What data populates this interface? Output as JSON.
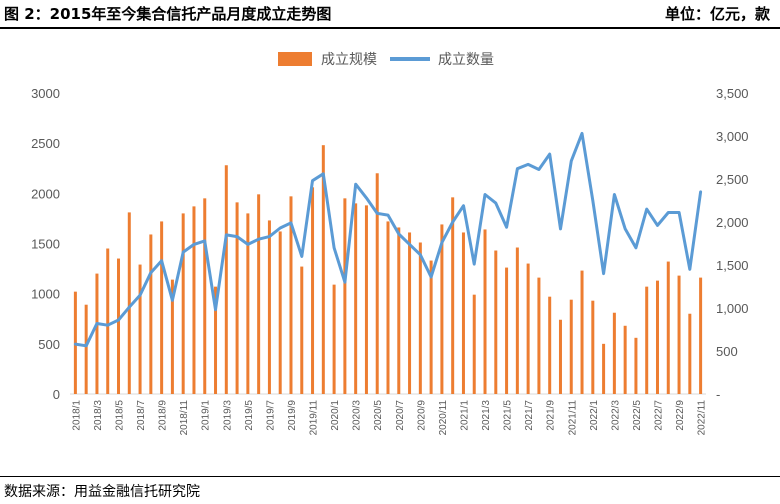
{
  "header": {
    "title": "图 2：2015年至今集合信托产品月度成立走势图",
    "unit": "单位：亿元，款"
  },
  "footer": {
    "source": "数据来源：用益金融信托研究院"
  },
  "colors": {
    "bar": "#ED7D31",
    "line": "#5B9BD5",
    "axis_text": "#595959"
  },
  "chart_data": {
    "type": "bar+line",
    "legend_position": "top",
    "categories": [
      "2018/1",
      "2018/2",
      "2018/3",
      "2018/4",
      "2018/5",
      "2018/6",
      "2018/7",
      "2018/8",
      "2018/9",
      "2018/10",
      "2018/11",
      "2018/12",
      "2019/1",
      "2019/2",
      "2019/3",
      "2019/4",
      "2019/5",
      "2019/6",
      "2019/7",
      "2019/8",
      "2019/9",
      "2019/10",
      "2019/11",
      "2019/12",
      "2020/1",
      "2020/2",
      "2020/3",
      "2020/4",
      "2020/5",
      "2020/6",
      "2020/7",
      "2020/8",
      "2020/9",
      "2020/10",
      "2020/11",
      "2020/12",
      "2021/1",
      "2021/2",
      "2021/3",
      "2021/4",
      "2021/5",
      "2021/6",
      "2021/7",
      "2021/8",
      "2021/9",
      "2021/10",
      "2021/11",
      "2021/12",
      "2022/1",
      "2022/2",
      "2022/3",
      "2022/4",
      "2022/5",
      "2022/6",
      "2022/7",
      "2022/8",
      "2022/9",
      "2022/10",
      "2022/11"
    ],
    "x_tick_labels": [
      "2018/1",
      "2018/3",
      "2018/5",
      "2018/7",
      "2018/9",
      "2018/11",
      "2019/1",
      "2019/3",
      "2019/5",
      "2019/7",
      "2019/9",
      "2019/11",
      "2020/1",
      "2020/3",
      "2020/5",
      "2020/7",
      "2020/9",
      "2020/11",
      "2021/1",
      "2021/3",
      "2021/5",
      "2021/7",
      "2021/9",
      "2021/11",
      "2022/1",
      "2022/3",
      "2022/5",
      "2022/7",
      "2022/9",
      "2022/11"
    ],
    "series": [
      {
        "name": "成立规模",
        "kind": "bar",
        "axis": "left",
        "values": [
          1020,
          890,
          1200,
          1450,
          1350,
          1810,
          1290,
          1590,
          1720,
          1140,
          1800,
          1870,
          1950,
          1070,
          2280,
          1910,
          1800,
          1990,
          1730,
          1620,
          1970,
          1270,
          2060,
          2480,
          1090,
          1950,
          1900,
          1880,
          2200,
          1720,
          1660,
          1610,
          1510,
          1330,
          1690,
          1960,
          1610,
          990,
          1640,
          1430,
          1260,
          1460,
          1300,
          1160,
          970,
          740,
          940,
          1230,
          930,
          500,
          810,
          680,
          560,
          1070,
          1130,
          1320,
          1180,
          800,
          1160
        ]
      },
      {
        "name": "成立数量",
        "kind": "line",
        "axis": "right",
        "values": [
          580,
          560,
          820,
          800,
          860,
          1010,
          1150,
          1410,
          1550,
          1090,
          1650,
          1740,
          1780,
          980,
          1850,
          1830,
          1740,
          1800,
          1830,
          1930,
          1990,
          1600,
          2480,
          2560,
          1700,
          1300,
          2440,
          2280,
          2100,
          2080,
          1860,
          1740,
          1620,
          1360,
          1760,
          2000,
          2190,
          1510,
          2320,
          2220,
          1940,
          2620,
          2670,
          2610,
          2790,
          1920,
          2710,
          3030,
          2250,
          1400,
          2320,
          1920,
          1700,
          2150,
          1960,
          2110,
          2110,
          1450,
          2350
        ]
      }
    ],
    "y_left": {
      "min": 0,
      "max": 3000,
      "ticks": [
        "0",
        "500",
        "1000",
        "1500",
        "2000",
        "2500",
        "3000"
      ]
    },
    "y_right": {
      "min": 0,
      "max": 3500,
      "ticks": [
        "-",
        "500",
        "1,000",
        "1,500",
        "2,000",
        "2,500",
        "3,000",
        "3,500"
      ]
    },
    "grid": false
  }
}
